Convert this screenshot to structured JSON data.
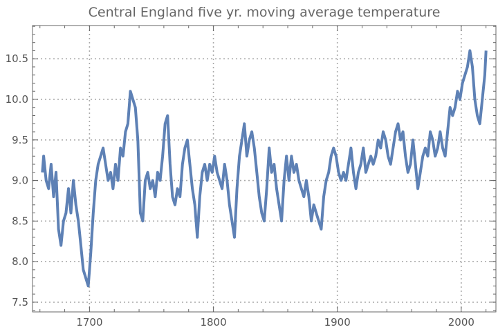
{
  "chart_data": {
    "type": "line",
    "title": "Central England five yr. moving average temperature",
    "xlabel": "",
    "ylabel": "",
    "xlim": [
      1654,
      2028
    ],
    "ylim": [
      7.38,
      10.91
    ],
    "x_ticks": [
      1700,
      1800,
      1900,
      2000
    ],
    "y_ticks": [
      7.5,
      8.0,
      8.5,
      9.0,
      9.5,
      10.0,
      10.5
    ],
    "y_tick_labels": [
      "7.5",
      "8.0",
      "8.5",
      "9.0",
      "9.5",
      "10.0",
      "10.5"
    ],
    "grid": true,
    "grid_style": "dotted",
    "line_color": "#5e81b5",
    "x": [
      1662,
      1663,
      1665,
      1667,
      1669,
      1671,
      1673,
      1675,
      1677,
      1679,
      1681,
      1683,
      1685,
      1687,
      1689,
      1691,
      1693,
      1695,
      1697,
      1699,
      1701,
      1703,
      1705,
      1707,
      1709,
      1711,
      1713,
      1715,
      1717,
      1719,
      1721,
      1723,
      1725,
      1727,
      1729,
      1731,
      1733,
      1735,
      1737,
      1739,
      1741,
      1743,
      1745,
      1747,
      1749,
      1751,
      1753,
      1755,
      1757,
      1759,
      1761,
      1763,
      1765,
      1767,
      1769,
      1771,
      1773,
      1775,
      1777,
      1779,
      1781,
      1783,
      1785,
      1787,
      1789,
      1791,
      1793,
      1795,
      1797,
      1799,
      1801,
      1803,
      1805,
      1807,
      1809,
      1811,
      1813,
      1815,
      1817,
      1819,
      1821,
      1823,
      1825,
      1827,
      1829,
      1831,
      1833,
      1835,
      1837,
      1839,
      1841,
      1843,
      1845,
      1847,
      1849,
      1851,
      1853,
      1855,
      1857,
      1859,
      1861,
      1863,
      1865,
      1867,
      1869,
      1871,
      1873,
      1875,
      1877,
      1879,
      1881,
      1883,
      1885,
      1887,
      1889,
      1891,
      1893,
      1895,
      1897,
      1899,
      1901,
      1903,
      1905,
      1907,
      1909,
      1911,
      1913,
      1915,
      1917,
      1919,
      1921,
      1923,
      1925,
      1927,
      1929,
      1931,
      1933,
      1935,
      1937,
      1939,
      1941,
      1943,
      1945,
      1947,
      1949,
      1951,
      1953,
      1955,
      1957,
      1959,
      1961,
      1963,
      1965,
      1967,
      1969,
      1971,
      1973,
      1975,
      1977,
      1979,
      1981,
      1983,
      1985,
      1987,
      1989,
      1991,
      1993,
      1995,
      1997,
      1999,
      2001,
      2003,
      2005,
      2007,
      2009,
      2011,
      2013,
      2015,
      2017,
      2019,
      2020
    ],
    "y": [
      9.1,
      9.3,
      9.0,
      8.9,
      9.2,
      8.8,
      9.1,
      8.4,
      8.2,
      8.5,
      8.6,
      8.9,
      8.6,
      9.0,
      8.7,
      8.5,
      8.2,
      7.9,
      7.8,
      7.7,
      8.1,
      8.6,
      9.0,
      9.2,
      9.3,
      9.4,
      9.2,
      9.0,
      9.1,
      8.9,
      9.2,
      9.0,
      9.4,
      9.3,
      9.6,
      9.7,
      10.1,
      10.0,
      9.9,
      9.5,
      8.6,
      8.5,
      9.0,
      9.1,
      8.9,
      9.0,
      8.8,
      9.1,
      9.0,
      9.3,
      9.7,
      9.8,
      9.2,
      8.8,
      8.7,
      8.9,
      8.8,
      9.2,
      9.4,
      9.5,
      9.2,
      8.9,
      8.7,
      8.3,
      8.8,
      9.1,
      9.2,
      9.0,
      9.2,
      9.1,
      9.3,
      9.1,
      9.0,
      8.9,
      9.2,
      9.0,
      8.7,
      8.5,
      8.3,
      8.9,
      9.3,
      9.5,
      9.7,
      9.3,
      9.5,
      9.6,
      9.4,
      9.1,
      8.8,
      8.6,
      8.5,
      8.9,
      9.4,
      9.1,
      9.2,
      8.9,
      8.7,
      8.5,
      9.0,
      9.3,
      9.0,
      9.3,
      9.1,
      9.2,
      9.0,
      8.9,
      8.8,
      9.0,
      8.8,
      8.5,
      8.7,
      8.6,
      8.5,
      8.4,
      8.8,
      9.0,
      9.1,
      9.3,
      9.4,
      9.3,
      9.1,
      9.0,
      9.1,
      9.0,
      9.2,
      9.4,
      9.1,
      8.9,
      9.1,
      9.2,
      9.4,
      9.1,
      9.2,
      9.3,
      9.2,
      9.3,
      9.5,
      9.4,
      9.6,
      9.5,
      9.3,
      9.2,
      9.4,
      9.6,
      9.7,
      9.5,
      9.6,
      9.3,
      9.1,
      9.2,
      9.5,
      9.2,
      8.9,
      9.1,
      9.3,
      9.4,
      9.3,
      9.6,
      9.5,
      9.3,
      9.4,
      9.6,
      9.4,
      9.3,
      9.6,
      9.9,
      9.8,
      9.9,
      10.1,
      10.0,
      10.2,
      10.3,
      10.4,
      10.6,
      10.4,
      10.0,
      9.8,
      9.7,
      10.0,
      10.3,
      10.6
    ]
  }
}
